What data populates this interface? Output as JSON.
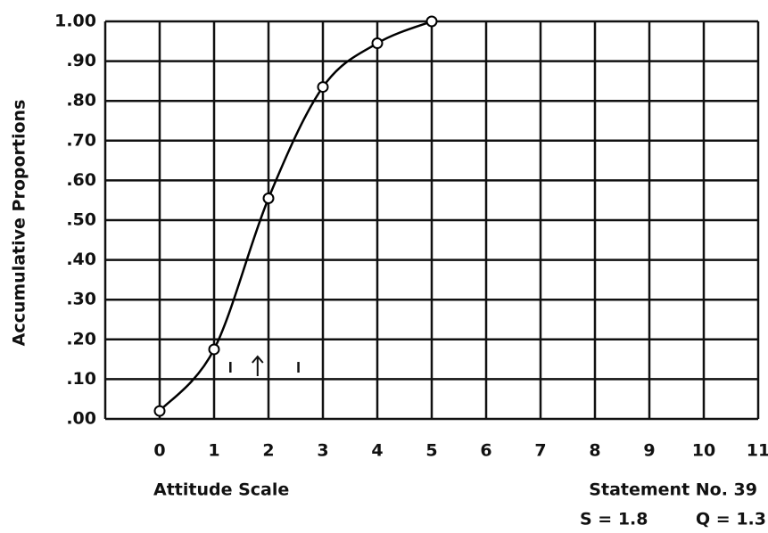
{
  "chart_data": {
    "type": "line",
    "xlabel": "Attitude Scale",
    "ylabel": "Accumulative Proportions",
    "annotations": [
      "Statement No. 39",
      "S = 1.8",
      "Q = 1.3"
    ],
    "x": [
      0,
      1,
      2,
      3,
      4,
      5
    ],
    "values": [
      0.02,
      0.175,
      0.555,
      0.835,
      0.945,
      1.0
    ],
    "color": "#000000",
    "quartile_marks": [
      1.3,
      2.55
    ],
    "median_mark": 1.8,
    "marks_level": 0.13,
    "xlim": [
      -1,
      11
    ],
    "ylim": [
      0,
      1
    ],
    "xticks": [
      0,
      1,
      2,
      3,
      4,
      5,
      6,
      7,
      8,
      9,
      10,
      11
    ],
    "yticks": [
      {
        "value": 0,
        "label": ".00"
      },
      {
        "value": 0.1,
        "label": ".10"
      },
      {
        "value": 0.2,
        "label": ".20"
      },
      {
        "value": 0.3,
        "label": ".30"
      },
      {
        "value": 0.4,
        "label": ".40"
      },
      {
        "value": 0.5,
        "label": ".50"
      },
      {
        "value": 0.6,
        "label": ".60"
      },
      {
        "value": 0.7,
        "label": ".70"
      },
      {
        "value": 0.8,
        "label": ".80"
      },
      {
        "value": 0.9,
        "label": ".90"
      },
      {
        "value": 1,
        "label": "1.00"
      }
    ],
    "grid": true
  }
}
